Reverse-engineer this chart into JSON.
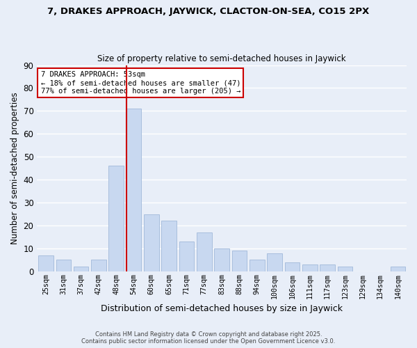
{
  "title1": "7, DRAKES APPROACH, JAYWICK, CLACTON-ON-SEA, CO15 2PX",
  "title2": "Size of property relative to semi-detached houses in Jaywick",
  "xlabel": "Distribution of semi-detached houses by size in Jaywick",
  "ylabel": "Number of semi-detached properties",
  "categories": [
    "25sqm",
    "31sqm",
    "37sqm",
    "42sqm",
    "48sqm",
    "54sqm",
    "60sqm",
    "65sqm",
    "71sqm",
    "77sqm",
    "83sqm",
    "88sqm",
    "94sqm",
    "100sqm",
    "106sqm",
    "111sqm",
    "117sqm",
    "123sqm",
    "129sqm",
    "134sqm",
    "140sqm"
  ],
  "values": [
    7,
    5,
    2,
    5,
    46,
    71,
    25,
    22,
    13,
    17,
    10,
    9,
    5,
    8,
    4,
    3,
    3,
    2,
    0,
    0,
    2
  ],
  "bar_color": "#c8d8f0",
  "bar_edge_color": "#a8bedd",
  "highlight_index": 5,
  "highlight_line_color": "#cc0000",
  "ylim": [
    0,
    90
  ],
  "yticks": [
    0,
    10,
    20,
    30,
    40,
    50,
    60,
    70,
    80,
    90
  ],
  "annotation_title": "7 DRAKES APPROACH: 53sqm",
  "annotation_line1": "← 18% of semi-detached houses are smaller (47)",
  "annotation_line2": "77% of semi-detached houses are larger (205) →",
  "annotation_box_color": "#ffffff",
  "annotation_box_edge": "#cc0000",
  "footer1": "Contains HM Land Registry data © Crown copyright and database right 2025.",
  "footer2": "Contains public sector information licensed under the Open Government Licence v3.0.",
  "background_color": "#e8eef8",
  "grid_color": "#ffffff"
}
